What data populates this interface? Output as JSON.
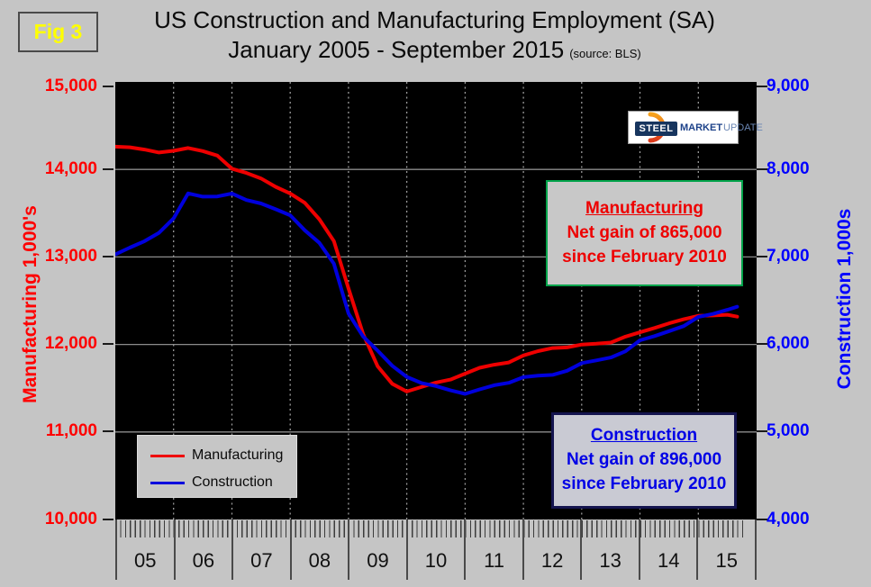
{
  "fig_label": "Fig 3",
  "title": {
    "line1": "US Construction and Manufacturing Employment (SA)",
    "line2": "January 2005 - September 2015",
    "source": "(source: BLS)"
  },
  "left_axis": {
    "title": "Manufacturing  1,000's",
    "color": "#ff0000",
    "ticks": [
      "15,000",
      "14,000",
      "13,000",
      "12,000",
      "11,000",
      "10,000"
    ]
  },
  "right_axis": {
    "title": "Construction 1,000s",
    "color": "#0000ff",
    "ticks": [
      "9,000",
      "8,000",
      "7,000",
      "6,000",
      "5,000",
      "4,000"
    ]
  },
  "x_axis": {
    "years": [
      "05",
      "06",
      "07",
      "08",
      "09",
      "10",
      "11",
      "12",
      "13",
      "14",
      "15"
    ]
  },
  "legend": [
    {
      "label": "Manufacturing",
      "color": "#ee0000"
    },
    {
      "label": "Construction",
      "color": "#0000dd"
    }
  ],
  "callouts": {
    "manufacturing": {
      "title": "Manufacturing",
      "line1": "Net gain of 865,000",
      "line2": "since February 2010"
    },
    "construction": {
      "title": "Construction",
      "line1": "Net gain of 896,000",
      "line2": "since February 2010"
    }
  },
  "logo": {
    "steel": "STEEL",
    "market": "MARKET",
    "update": "UPDATE"
  },
  "chart_data": {
    "type": "line",
    "title": "US Construction and Manufacturing Employment (SA), January 2005 - September 2015",
    "x_unit": "months_since_jan_2005",
    "months_span": 132,
    "data_end_month": 129,
    "left_axis_range": [
      10000,
      15000
    ],
    "right_axis_range": [
      4000,
      9000
    ],
    "h_gridline_values": [
      14000,
      13000,
      12000,
      11000
    ],
    "v_gridline_months": [
      12,
      24,
      36,
      48,
      60,
      72,
      84,
      96,
      108,
      120
    ],
    "grid": true,
    "legend_position": "lower-left",
    "series": [
      {
        "name": "Manufacturing",
        "axis": "left",
        "color": "#ee0000",
        "points": [
          [
            0,
            14260
          ],
          [
            3,
            14253
          ],
          [
            6,
            14227
          ],
          [
            9,
            14193
          ],
          [
            12,
            14213
          ],
          [
            15,
            14245
          ],
          [
            18,
            14210
          ],
          [
            21,
            14158
          ],
          [
            24,
            14008
          ],
          [
            27,
            13960
          ],
          [
            30,
            13897
          ],
          [
            33,
            13801
          ],
          [
            36,
            13725
          ],
          [
            39,
            13618
          ],
          [
            42,
            13431
          ],
          [
            45,
            13181
          ],
          [
            48,
            12640
          ],
          [
            51,
            12120
          ],
          [
            54,
            11750
          ],
          [
            57,
            11550
          ],
          [
            60,
            11462
          ],
          [
            63,
            11513
          ],
          [
            66,
            11565
          ],
          [
            69,
            11599
          ],
          [
            72,
            11667
          ],
          [
            75,
            11734
          ],
          [
            78,
            11769
          ],
          [
            81,
            11794
          ],
          [
            84,
            11875
          ],
          [
            87,
            11924
          ],
          [
            90,
            11959
          ],
          [
            93,
            11966
          ],
          [
            96,
            11999
          ],
          [
            99,
            12008
          ],
          [
            102,
            12022
          ],
          [
            105,
            12090
          ],
          [
            108,
            12139
          ],
          [
            111,
            12188
          ],
          [
            114,
            12242
          ],
          [
            117,
            12288
          ],
          [
            120,
            12327
          ],
          [
            123,
            12331
          ],
          [
            126,
            12340
          ],
          [
            128,
            12318
          ]
        ]
      },
      {
        "name": "Construction",
        "axis": "right",
        "color": "#0000dd",
        "points": [
          [
            0,
            7029
          ],
          [
            3,
            7107
          ],
          [
            6,
            7180
          ],
          [
            9,
            7276
          ],
          [
            12,
            7440
          ],
          [
            15,
            7726
          ],
          [
            18,
            7689
          ],
          [
            21,
            7691
          ],
          [
            24,
            7725
          ],
          [
            27,
            7650
          ],
          [
            30,
            7611
          ],
          [
            33,
            7545
          ],
          [
            36,
            7476
          ],
          [
            39,
            7305
          ],
          [
            42,
            7162
          ],
          [
            45,
            6923
          ],
          [
            48,
            6354
          ],
          [
            51,
            6092
          ],
          [
            54,
            5929
          ],
          [
            57,
            5756
          ],
          [
            60,
            5630
          ],
          [
            63,
            5560
          ],
          [
            66,
            5525
          ],
          [
            69,
            5475
          ],
          [
            72,
            5435
          ],
          [
            75,
            5487
          ],
          [
            78,
            5534
          ],
          [
            81,
            5562
          ],
          [
            84,
            5627
          ],
          [
            87,
            5643
          ],
          [
            90,
            5652
          ],
          [
            93,
            5700
          ],
          [
            96,
            5787
          ],
          [
            99,
            5818
          ],
          [
            102,
            5851
          ],
          [
            105,
            5922
          ],
          [
            108,
            6047
          ],
          [
            111,
            6096
          ],
          [
            114,
            6152
          ],
          [
            117,
            6210
          ],
          [
            120,
            6315
          ],
          [
            123,
            6349
          ],
          [
            126,
            6396
          ],
          [
            128,
            6431
          ]
        ]
      }
    ]
  }
}
